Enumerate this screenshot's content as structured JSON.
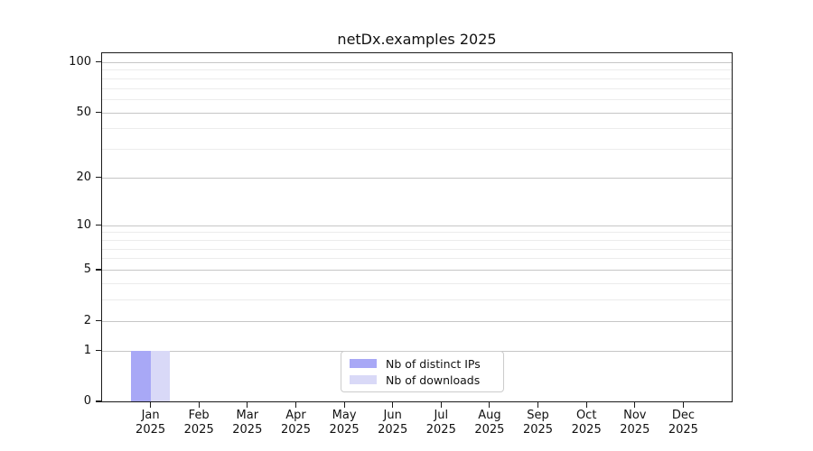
{
  "chart_data": {
    "type": "bar",
    "title": "netDx.examples 2025",
    "categories": [
      "Jan",
      "Feb",
      "Mar",
      "Apr",
      "May",
      "Jun",
      "Jul",
      "Aug",
      "Sep",
      "Oct",
      "Nov",
      "Dec"
    ],
    "category_year": "2025",
    "series": [
      {
        "name": "Nb of distinct IPs",
        "color": "#a8a8f6",
        "values": [
          1,
          0,
          0,
          0,
          0,
          0,
          0,
          0,
          0,
          0,
          0,
          0
        ]
      },
      {
        "name": "Nb of downloads",
        "color": "#d9d9f7",
        "values": [
          1,
          0,
          0,
          0,
          0,
          0,
          0,
          0,
          0,
          0,
          0,
          0
        ]
      }
    ],
    "xlabel": "",
    "ylabel": "",
    "y_scale": "log1p",
    "ylim": [
      0,
      113
    ],
    "y_tick_values": [
      0,
      1,
      2,
      5,
      10,
      20,
      50,
      100
    ],
    "y_minor_gridline_values": [
      3,
      4,
      6,
      7,
      8,
      9,
      30,
      40,
      60,
      70,
      80,
      90
    ],
    "grid": true,
    "legend_position": "bottom-center",
    "colors": {
      "major_gridline": "#c6c6c6",
      "minor_gridline": "#ececec",
      "spine": "#1a1a1a",
      "tick_label": "#111111",
      "legend_border": "#cccccc",
      "legend_background": "#ffffff"
    }
  }
}
